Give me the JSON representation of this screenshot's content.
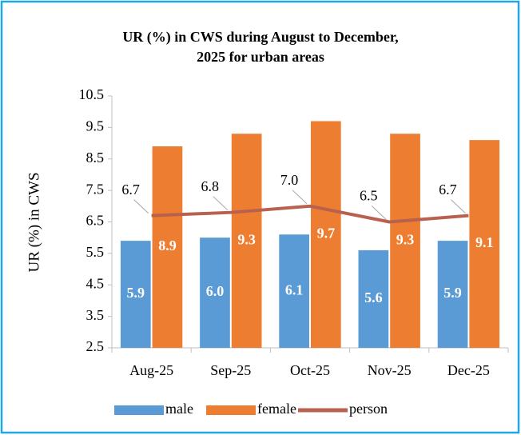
{
  "chart_data": {
    "type": "bar",
    "title": [
      "UR (%) in CWS during August  to December,",
      "2025 for urban areas"
    ],
    "y_label": "UR (%) in CWS",
    "categories": [
      "Aug-25",
      "Sep-25",
      "Oct-25",
      "Nov-25",
      "Dec-25"
    ],
    "series": [
      {
        "name": "male",
        "type": "bar",
        "color": "#5b9bd5",
        "values": [
          5.9,
          6.0,
          6.1,
          5.6,
          5.9
        ],
        "value_labels": [
          "5.9",
          "6.0",
          "6.1",
          "5.6",
          "5.9"
        ]
      },
      {
        "name": "female",
        "type": "bar",
        "color": "#ed7d31",
        "values": [
          8.9,
          9.3,
          9.7,
          9.3,
          9.1
        ]
      },
      {
        "name": "person",
        "type": "line",
        "color": "#b8614e",
        "values": [
          6.7,
          6.8,
          7.0,
          6.5,
          6.7
        ],
        "value_labels": [
          "6.7",
          "6.8",
          "7.0",
          "6.5",
          "6.7"
        ]
      }
    ],
    "ylim": [
      2.5,
      10.5
    ],
    "yticks": [
      2.5,
      3.5,
      4.5,
      5.5,
      6.5,
      7.5,
      8.5,
      9.5,
      10.5
    ],
    "grid": false,
    "legend": "bottom"
  }
}
